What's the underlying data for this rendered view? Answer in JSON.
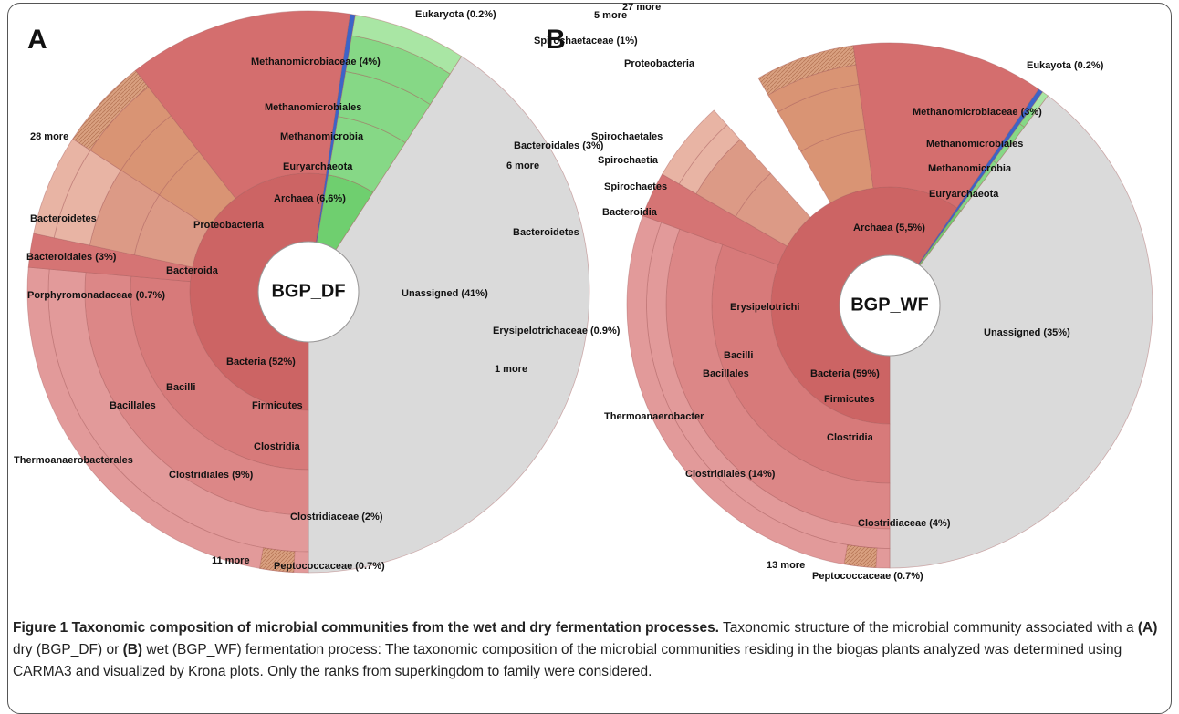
{
  "panels": [
    {
      "letter": "A",
      "center": "BGP_DF",
      "labels": [
        "Methanomicrobiaceae (4%)",
        "Eukaryota (0.2%)",
        "Methanomicrobiales",
        "Methanomicrobia",
        "Euryarchaeota",
        "Archaea (6,6%)",
        "28 more",
        "Bacteroidetes",
        "Proteobacteria",
        "Bacteroidales (3%)",
        "Bacteroida",
        "Porphyromonadaceae (0.7%)",
        "Unassigned (41%)",
        "Bacteria (52%)",
        "Bacilli",
        "Bacillales",
        "Firmicutes",
        "Clostridia",
        "Thermoanaerobacterales",
        "Clostridiales (9%)",
        "Clostridiaceae (2%)",
        "11 more",
        "Peptococcaceae (0.7%)"
      ]
    },
    {
      "letter": "B",
      "center": "BGP_WF",
      "labels": [
        "27 more",
        "5 more",
        "Spirochaetaceae (1%)",
        "Proteobacteria",
        "Eukayota  (0.2%)",
        "Methanomicrobiaceae (3%)",
        "Spirochaetales",
        "Methanomicrobiales",
        "Bacteroidales (3%)",
        "Spirochaetia",
        "Methanomicrobia",
        "6 more",
        "Spirochaetes",
        "Euryarchaeota",
        "Bacteroidia",
        "Bacteroidetes",
        "Archaea (5,5%)",
        "Erysipelotrichi",
        "Erysipelotrichaceae (0.9%)",
        "Unassigned (35%)",
        "Bacilli",
        "1 more",
        "Bacillales",
        "Bacteria (59%)",
        "Firmicutes",
        "Thermoanaerobacter",
        "Clostridia",
        "Clostridiales (14%)",
        "Clostridiaceae  (4%)",
        "13 more",
        "Peptococcaceae (0.7%)"
      ]
    }
  ],
  "caption": {
    "title": "Figure 1 Taxonomic composition of microbial communities from the wet and dry fermentation processes.",
    "text": [
      "Taxonomic structure of the microbial community associated with a ",
      "(A)",
      " dry (BGP_DF) or ",
      "(B)",
      " wet (BGP_WF) fermentation process: The taxonomic composition of the microbial communities residing in the biogas plants analyzed was determined using CARMA3 and visualized by Krona plots. Only the ranks from superkingdom to family were considered."
    ]
  }
}
